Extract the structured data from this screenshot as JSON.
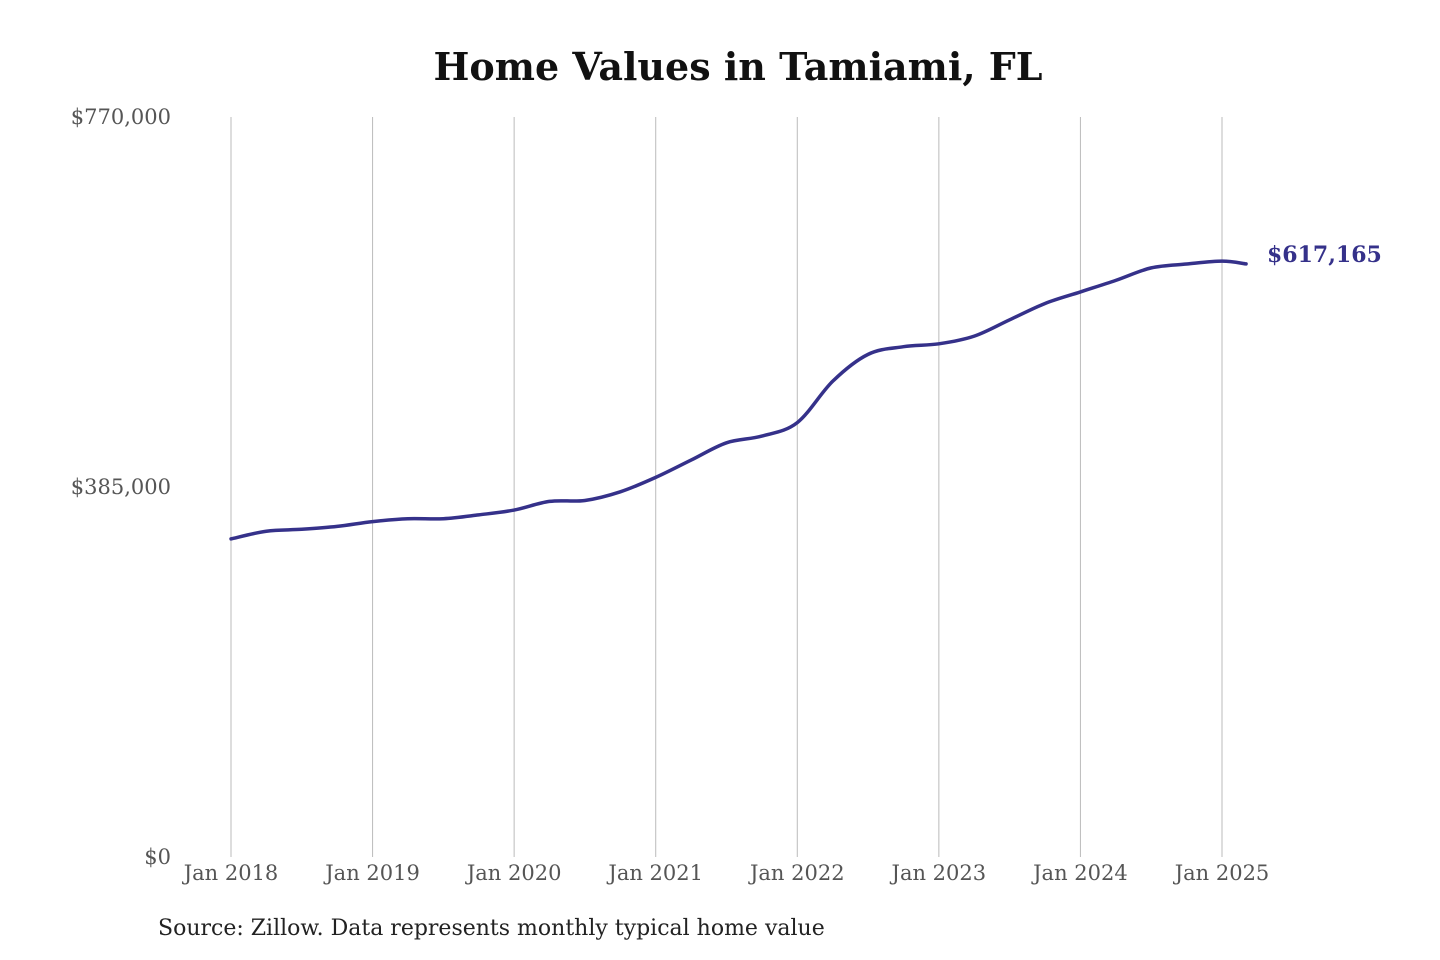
{
  "chart_data": {
    "type": "line",
    "title": "Home Values in Tamiami, FL",
    "xlabel": "",
    "ylabel": "",
    "ylim": [
      0,
      770000
    ],
    "y_ticks": [
      {
        "value": 0,
        "label": "$0"
      },
      {
        "value": 385000,
        "label": "$385,000"
      },
      {
        "value": 770000,
        "label": "$770,000"
      }
    ],
    "x_ticks": [
      {
        "value": 2018,
        "label": "Jan 2018"
      },
      {
        "value": 2019,
        "label": "Jan 2019"
      },
      {
        "value": 2020,
        "label": "Jan 2020"
      },
      {
        "value": 2021,
        "label": "Jan 2021"
      },
      {
        "value": 2022,
        "label": "Jan 2022"
      },
      {
        "value": 2023,
        "label": "Jan 2023"
      },
      {
        "value": 2024,
        "label": "Jan 2024"
      },
      {
        "value": 2025,
        "label": "Jan 2025"
      }
    ],
    "grid": "vertical",
    "line_color": "#35318a",
    "series": [
      {
        "name": "Typical home value",
        "x": [
          2018.0,
          2018.25,
          2018.5,
          2018.75,
          2019.0,
          2019.25,
          2019.5,
          2019.75,
          2020.0,
          2020.25,
          2020.5,
          2020.75,
          2021.0,
          2021.25,
          2021.5,
          2021.75,
          2022.0,
          2022.25,
          2022.5,
          2022.75,
          2023.0,
          2023.25,
          2023.5,
          2023.75,
          2024.0,
          2024.25,
          2024.5,
          2024.75,
          2025.0,
          2025.17
        ],
        "values": [
          331000,
          339000,
          341000,
          344000,
          349000,
          352000,
          352000,
          356000,
          361000,
          370000,
          371000,
          380000,
          395000,
          413000,
          431000,
          438000,
          452000,
          495000,
          523000,
          531000,
          534000,
          542000,
          559000,
          576000,
          588000,
          600000,
          613000,
          617000,
          620000,
          617165
        ]
      }
    ],
    "end_label": "$617,165"
  },
  "source": "Source: Zillow. Data represents monthly typical home value"
}
